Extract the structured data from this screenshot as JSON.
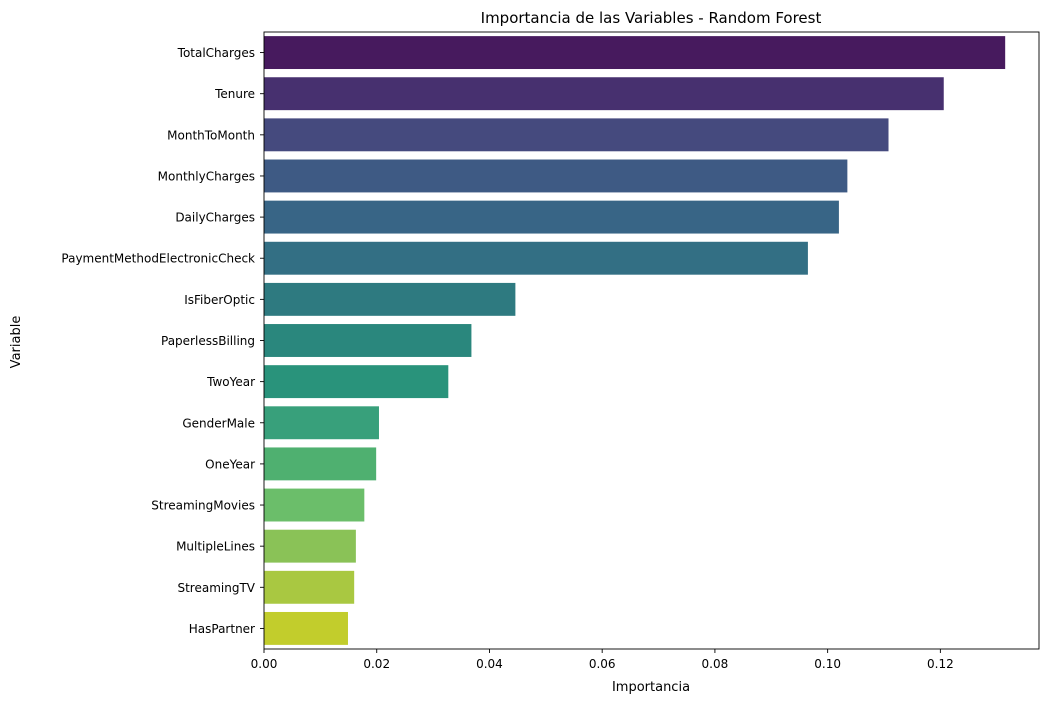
{
  "chart_data": {
    "type": "bar",
    "orientation": "horizontal",
    "title": "Importancia de las Variables - Random Forest",
    "xlabel": "Importancia",
    "ylabel": "Variable",
    "xlim": [
      0,
      0.1375
    ],
    "xticks": [
      0.0,
      0.02,
      0.04,
      0.06,
      0.08,
      0.1,
      0.12
    ],
    "xtick_labels": [
      "0.00",
      "0.02",
      "0.04",
      "0.06",
      "0.08",
      "0.10",
      "0.12"
    ],
    "grid": false,
    "palette": "viridis",
    "categories": [
      "TotalCharges",
      "Tenure",
      "MonthToMonth",
      "MonthlyCharges",
      "DailyCharges",
      "PaymentMethodElectronicCheck",
      "IsFiberOptic",
      "PaperlessBilling",
      "TwoYear",
      "GenderMale",
      "OneYear",
      "StreamingMovies",
      "MultipleLines",
      "StreamingTV",
      "HasPartner"
    ],
    "values": [
      0.1315,
      0.1206,
      0.1108,
      0.1035,
      0.102,
      0.0965,
      0.0446,
      0.0368,
      0.0327,
      0.0204,
      0.0199,
      0.0178,
      0.0163,
      0.016,
      0.0149
    ],
    "colors": [
      "#471a5e",
      "#47306f",
      "#454a7e",
      "#3e5a84",
      "#386586",
      "#336f84",
      "#2e7a80",
      "#2a877d",
      "#29937b",
      "#38a07b",
      "#4fb070",
      "#6bbe6a",
      "#8ac257",
      "#a9c841",
      "#c2cd2c"
    ]
  }
}
